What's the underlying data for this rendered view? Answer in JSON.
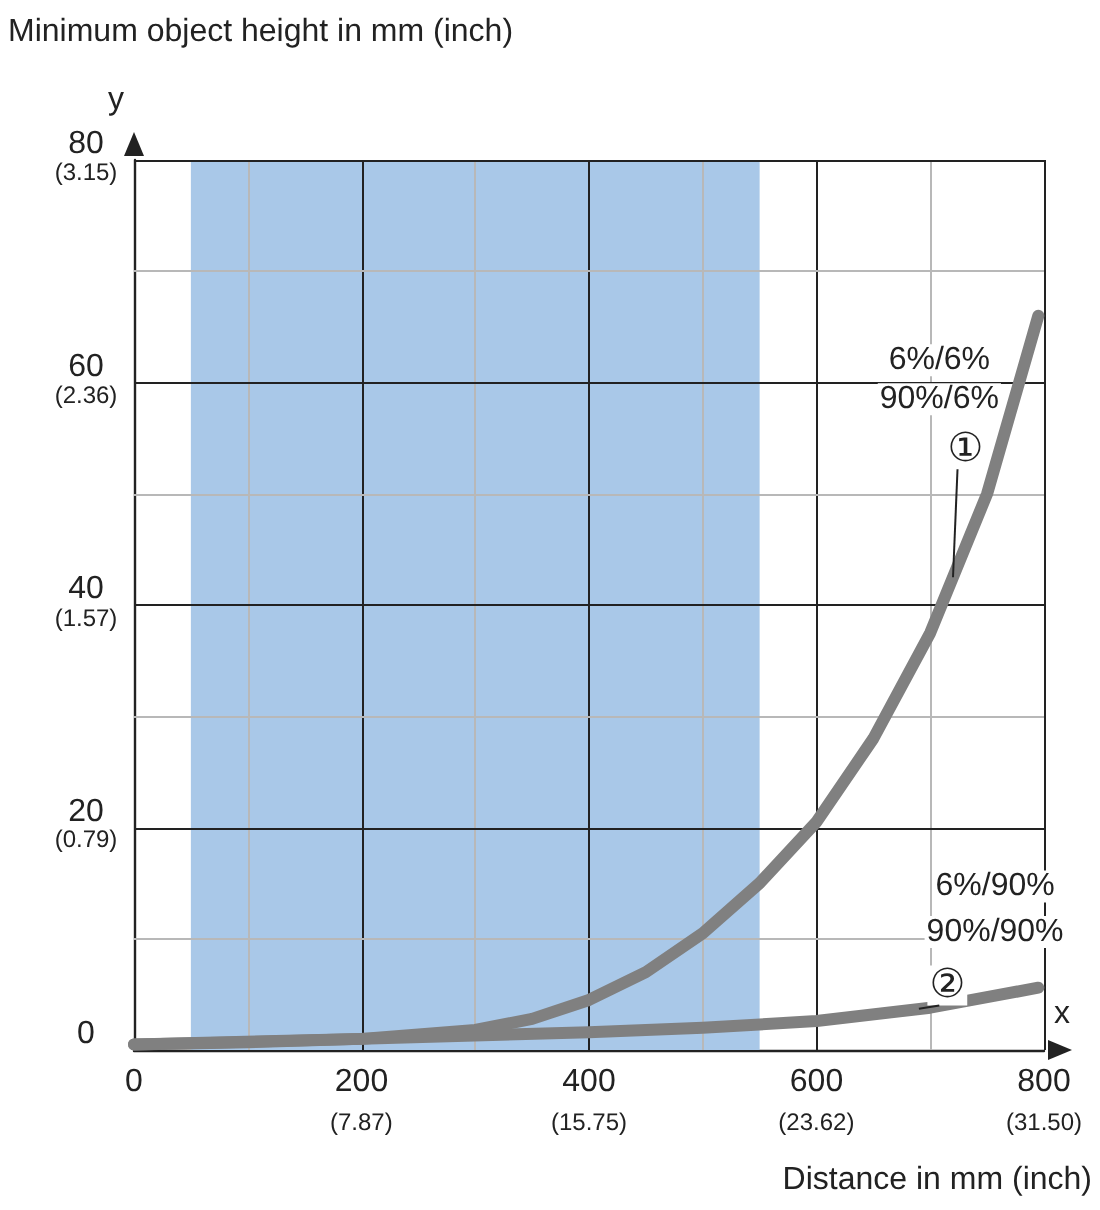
{
  "chart_data": {
    "type": "line",
    "title": "Minimum object height in mm (inch)",
    "xlabel": "Distance in mm (inch)",
    "xlim": [
      0,
      800
    ],
    "ylim": [
      0,
      80
    ],
    "xticks": [
      0,
      {
        "value": 100,
        "label": null
      },
      200,
      {
        "value": 300,
        "label": null
      },
      400,
      {
        "value": 500,
        "label": null
      },
      600,
      {
        "value": 700,
        "label": null
      },
      800
    ],
    "yticks": [
      0,
      {
        "value": 10,
        "label": null
      },
      20,
      {
        "value": 30,
        "label": null
      },
      40,
      {
        "value": 50,
        "label": null
      },
      60,
      {
        "value": 70,
        "label": null
      },
      80
    ],
    "x2lim": [
      0,
      31.5
    ],
    "x2ticks": [
      {
        "value": 7.87,
        "label": "(7.87)"
      },
      {
        "value": 15.75,
        "label": "(15.75)"
      },
      {
        "value": 23.62,
        "label": "(23.62)"
      },
      {
        "value": 31.5,
        "label": "(31.50)"
      }
    ],
    "y2lim": [
      0,
      3.15
    ],
    "y2ticks": [
      {
        "value": 0.79,
        "label": "(0.79)"
      },
      {
        "value": 1.57,
        "label": "(1.57)"
      },
      {
        "value": 2.36,
        "label": "(2.36)"
      },
      {
        "value": 3.15,
        "label": "(3.15)"
      }
    ],
    "grid": true,
    "marker": "none",
    "line_style": "solid",
    "series": [
      {
        "color": "#808080",
        "x": [
          0,
          100,
          200,
          300,
          350,
          400,
          450,
          500,
          550,
          600,
          650,
          700,
          750,
          795
        ],
        "values": [
          0.5,
          0.7,
          1.0,
          1.8,
          2.8,
          4.5,
          7,
          10.5,
          15,
          20.5,
          28,
          37.5,
          50,
          66
        ]
      },
      {
        "color": "#808080",
        "x": [
          0,
          200,
          400,
          500,
          600,
          700,
          795
        ],
        "values": [
          0.5,
          1,
          1.6,
          2,
          2.6,
          3.8,
          5.6
        ]
      }
    ],
    "bands": [
      {
        "axis": "x",
        "from": 50,
        "to": 550,
        "color": "#a9c8e8"
      }
    ],
    "annotations": [
      "y",
      "x",
      "6%/6%",
      "90%/6%",
      {
        "text": "①",
        "x": 720,
        "y": 42.5
      },
      "6%/90%",
      "90%/90%",
      {
        "text": "②",
        "x": 690,
        "y": 3.7
      }
    ]
  }
}
